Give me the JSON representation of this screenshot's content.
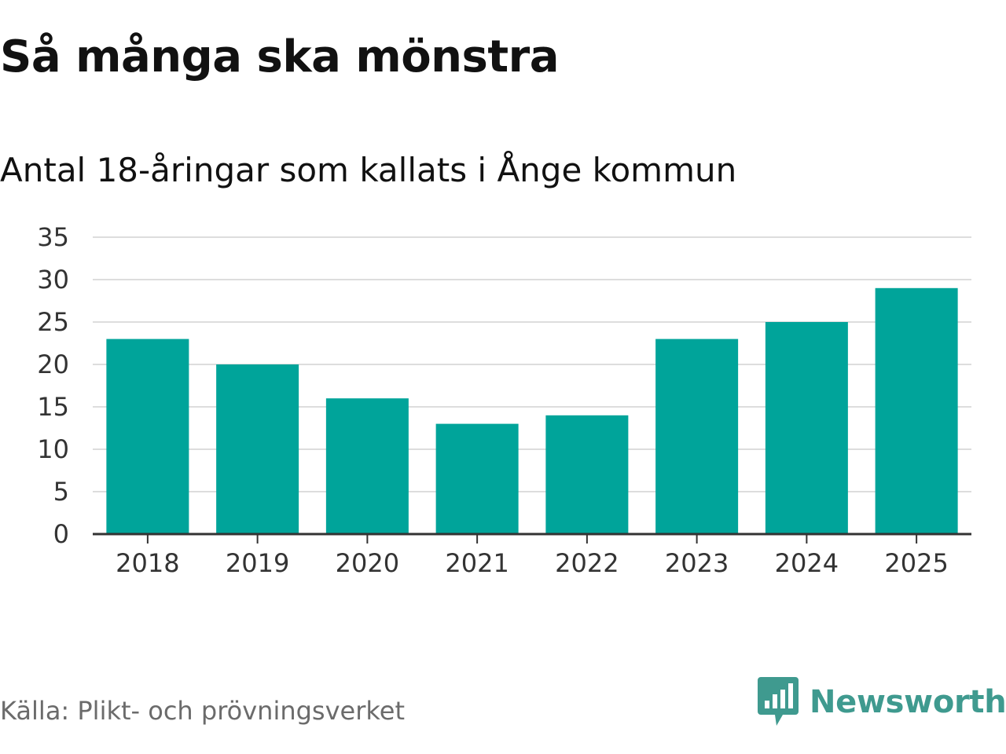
{
  "title": "Så många ska mönstra",
  "source": "Källa: Plikt- och prövningsverket",
  "brand": {
    "name": "Newsworthy",
    "icon": "newsworthy-logo-icon",
    "color": "#3f9a8f"
  },
  "chart_data": {
    "type": "bar",
    "title": "Så många ska mönstra",
    "subtitle": "Antal 18-åringar som kallats i Ånge kommun",
    "xlabel": "",
    "ylabel": "",
    "categories": [
      "2018",
      "2019",
      "2020",
      "2021",
      "2022",
      "2023",
      "2024",
      "2025"
    ],
    "values": [
      23,
      20,
      16,
      13,
      14,
      23,
      25,
      29
    ],
    "ylim": [
      0,
      35
    ],
    "yticks": [
      0,
      5,
      10,
      15,
      20,
      25,
      30,
      35
    ],
    "grid": true,
    "legend": "none",
    "bar_color": "#00a49a",
    "grid_color": "#dddddd",
    "axis_color": "#333333"
  }
}
